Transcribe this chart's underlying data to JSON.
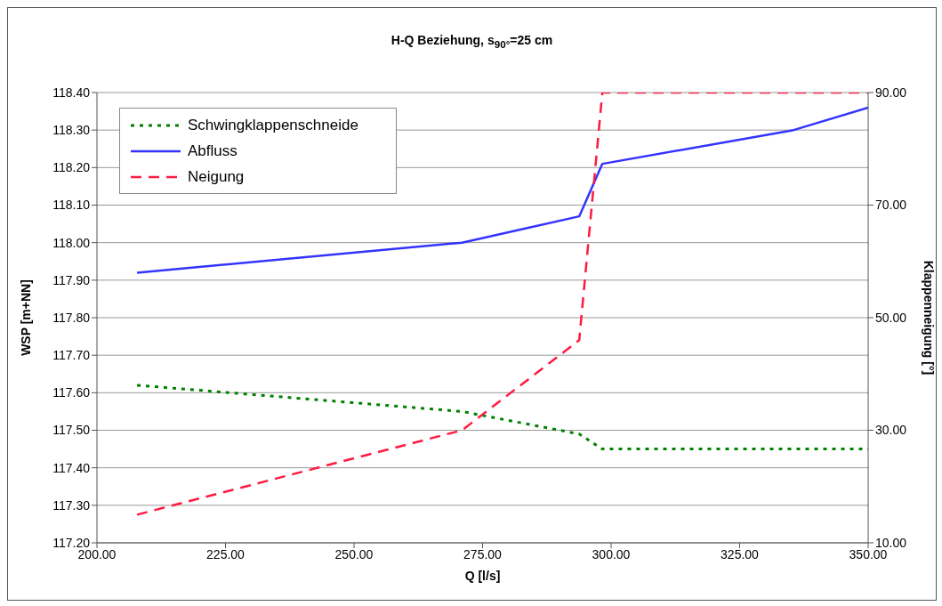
{
  "chart_data": {
    "type": "line",
    "title": "H-Q Beziehung, s$_{90°}$=25 cm",
    "xlabel": "Q [l/s]",
    "ylabel": "WSP [m+NN]",
    "y2label": "Klappenneigung [°]",
    "xlim": [
      200,
      350
    ],
    "xticks": [
      {
        "value": 200,
        "label": "200.00"
      },
      {
        "value": 225,
        "label": "225.00"
      },
      {
        "value": 250,
        "label": "250.00"
      },
      {
        "value": 275,
        "label": "275.00"
      },
      {
        "value": 300,
        "label": "300.00"
      },
      {
        "value": 325,
        "label": "325.00"
      },
      {
        "value": 350,
        "label": "350.00"
      }
    ],
    "ylim": [
      117.2,
      118.4
    ],
    "yticks": [
      {
        "value": 117.2,
        "label": "117.20"
      },
      {
        "value": 117.3,
        "label": "117.30"
      },
      {
        "value": 117.4,
        "label": "117.40"
      },
      {
        "value": 117.5,
        "label": "117.50"
      },
      {
        "value": 117.6,
        "label": "117.60"
      },
      {
        "value": 117.7,
        "label": "117.70"
      },
      {
        "value": 117.8,
        "label": "117.80"
      },
      {
        "value": 117.9,
        "label": "117.90"
      },
      {
        "value": 118,
        "label": "118.00"
      },
      {
        "value": 118.1,
        "label": "118.10"
      },
      {
        "value": 118.2,
        "label": "118.20"
      },
      {
        "value": 118.3,
        "label": "118.30"
      },
      {
        "value": 118.4,
        "label": "118.40"
      }
    ],
    "y2lim": [
      10,
      90
    ],
    "y2ticks": [
      {
        "value": 10,
        "label": "10.00"
      },
      {
        "value": 30,
        "label": "30.00"
      },
      {
        "value": 50,
        "label": "50.00"
      },
      {
        "value": 70,
        "label": "70.00"
      },
      {
        "value": 90,
        "label": "90.00"
      }
    ],
    "grid": "y",
    "legend": "top left",
    "marker": "none",
    "series": [
      {
        "name": "Schwingklappenschneide",
        "color": "#008000",
        "line_style": "dotted",
        "x": [
          207.8,
          271,
          293.8,
          298.3,
          350
        ],
        "values": [
          117.62,
          117.55,
          117.49,
          117.45,
          117.45
        ]
      },
      {
        "name": "Abfluss",
        "color": "#3333ff",
        "line_style": "solid",
        "x": [
          207.8,
          271,
          293.8,
          298.3,
          335.5,
          350
        ],
        "values": [
          117.92,
          118.0,
          118.07,
          118.21,
          118.3,
          118.36
        ]
      },
      {
        "name": "Neigung",
        "color": "#ff1a40",
        "line_style": "dashed",
        "axis": "y2",
        "x": [
          207.8,
          271,
          293.8,
          298.3,
          350
        ],
        "values": [
          15,
          30,
          46,
          90,
          90
        ]
      }
    ]
  }
}
